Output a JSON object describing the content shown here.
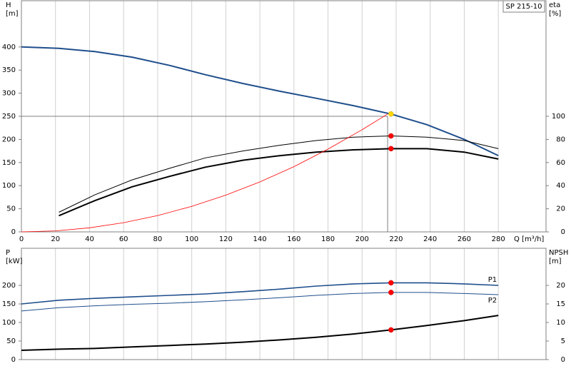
{
  "chart_data": [
    {
      "type": "line",
      "title": "SP 215-10",
      "ylabel": "H",
      "yunit": "[m]",
      "y2label": "eta",
      "y2unit": "[%]",
      "xlabel": "Q [m³/h]",
      "xlim": [
        0,
        308
      ],
      "xticks": [
        0,
        20,
        40,
        60,
        80,
        100,
        120,
        140,
        160,
        180,
        200,
        220,
        240,
        260,
        280
      ],
      "ylim": [
        0,
        500
      ],
      "yticks": [
        0,
        50,
        100,
        150,
        200,
        250,
        300,
        350,
        400
      ],
      "y2lim": [
        0,
        200
      ],
      "y2ticks": [
        0,
        20,
        40,
        60,
        80,
        100
      ],
      "show_xtick_labels": true,
      "reference": {
        "x": 215,
        "y": 250,
        "color": "#808080"
      },
      "series": [
        {
          "color": "#1f4e8c",
          "line_width": 2,
          "axis": "y",
          "x": [
            0,
            22,
            43,
            65,
            87,
            108,
            130,
            152,
            173,
            195,
            217,
            238,
            260,
            280
          ],
          "values": [
            400,
            397,
            390,
            378,
            360,
            340,
            321,
            304,
            289,
            273,
            255,
            232,
            200,
            165
          ]
        },
        {
          "color": "#000000",
          "line_width": 1,
          "axis": "y2",
          "x": [
            22,
            43,
            65,
            87,
            108,
            130,
            152,
            173,
            195,
            217,
            238,
            260,
            280
          ],
          "values": [
            17,
            32,
            45,
            55,
            64,
            70,
            75,
            79,
            82,
            83,
            82,
            79,
            72
          ]
        },
        {
          "color": "#000000",
          "line_width": 2,
          "axis": "y2",
          "x": [
            22,
            43,
            65,
            87,
            108,
            130,
            152,
            173,
            195,
            217,
            238,
            260,
            280
          ],
          "values": [
            14,
            27,
            39,
            48,
            56,
            62,
            66,
            69,
            71,
            72,
            72,
            69,
            63
          ]
        },
        {
          "color": "#ff0000",
          "line_width": 0.8,
          "axis": "y",
          "x": [
            0,
            20,
            40,
            60,
            80,
            100,
            120,
            140,
            160,
            180,
            200,
            215
          ],
          "values": [
            0,
            2.2,
            8.8,
            19.9,
            35.3,
            55.2,
            79.4,
            108,
            141,
            179,
            221,
            255
          ]
        }
      ],
      "markers": [
        {
          "x": 217,
          "y": 255,
          "axis": "y",
          "color": "#ffd700"
        },
        {
          "x": 217,
          "y": 83,
          "axis": "y2",
          "color": "#ff0000"
        },
        {
          "x": 217,
          "y": 72,
          "axis": "y2",
          "color": "#ff0000"
        }
      ]
    },
    {
      "type": "line",
      "ylabel": "P",
      "yunit": "[kW]",
      "y2label": "NPSH",
      "y2unit": "[m]",
      "xlim": [
        0,
        308
      ],
      "xticks": [
        0,
        20,
        40,
        60,
        80,
        100,
        120,
        140,
        160,
        180,
        200,
        220,
        240,
        260,
        280
      ],
      "ylim": [
        0,
        300
      ],
      "yticks": [
        0,
        50,
        100,
        150,
        200
      ],
      "y2lim": [
        0,
        30
      ],
      "y2ticks": [
        0,
        5,
        10,
        15,
        20
      ],
      "show_xtick_labels": false,
      "series": [
        {
          "name": "P1",
          "color": "#1f4e8c",
          "line_width": 1.6,
          "axis": "y",
          "x": [
            0,
            22,
            43,
            65,
            87,
            108,
            130,
            152,
            173,
            195,
            217,
            238,
            260,
            280
          ],
          "values": [
            150,
            160,
            165,
            169,
            173,
            177,
            183,
            190,
            198,
            204,
            207,
            207,
            204,
            200
          ]
        },
        {
          "name": "P2",
          "color": "#1f4e8c",
          "line_width": 1,
          "axis": "y",
          "x": [
            0,
            22,
            43,
            65,
            87,
            108,
            130,
            152,
            173,
            195,
            217,
            238,
            260,
            280
          ],
          "values": [
            131,
            140,
            145,
            149,
            152,
            156,
            161,
            167,
            173,
            178,
            181,
            181,
            178,
            175
          ]
        },
        {
          "color": "#000000",
          "line_width": 2,
          "axis": "y2",
          "x": [
            0,
            22,
            43,
            65,
            87,
            108,
            130,
            152,
            173,
            195,
            217,
            238,
            260,
            280
          ],
          "values": [
            2.5,
            2.8,
            3.0,
            3.4,
            3.8,
            4.2,
            4.7,
            5.3,
            6.0,
            6.9,
            8.0,
            9.2,
            10.5,
            11.9
          ]
        }
      ],
      "markers": [
        {
          "x": 217,
          "y": 207,
          "axis": "y",
          "color": "#ff0000"
        },
        {
          "x": 217,
          "y": 181,
          "axis": "y",
          "color": "#ff0000"
        },
        {
          "x": 217,
          "y": 8.0,
          "axis": "y2",
          "color": "#ff0000"
        }
      ]
    }
  ]
}
